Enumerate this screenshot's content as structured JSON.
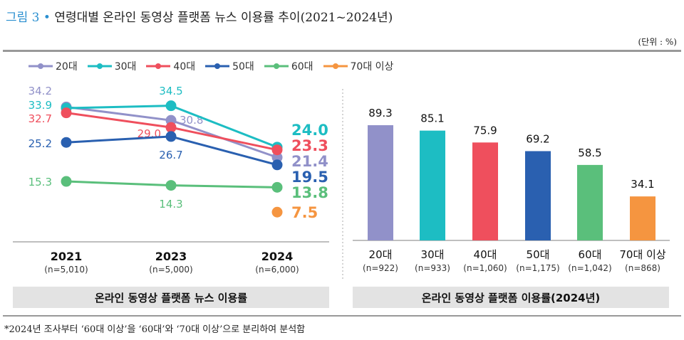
{
  "header": {
    "figure_label": "그림 3",
    "bullet": "•",
    "title": "연령대별 온라인 동영상 플랫폼 뉴스 이용률 추이(2021~2024년)",
    "unit": "(단위 : %)"
  },
  "footnote": "*2024년 조사부터 ‘60대 이상’을 ‘60대’와 ‘70대 이상’으로 분리하여 분석함",
  "chart_data": [
    {
      "type": "line",
      "caption": "온라인 동영상 플랫폼 뉴스 이용률",
      "legend_position": "top",
      "categories": [
        "2021",
        "2023",
        "2024"
      ],
      "category_samples": [
        "(n=5,010)",
        "(n=5,000)",
        "(n=6,000)"
      ],
      "series": [
        {
          "name": "20대",
          "color": "#9191c9",
          "values": [
            34.2,
            30.8,
            21.4
          ]
        },
        {
          "name": "30대",
          "color": "#1dbdc3",
          "values": [
            33.9,
            34.5,
            24.0
          ]
        },
        {
          "name": "40대",
          "color": "#ef4f5d",
          "values": [
            32.7,
            29.0,
            23.3
          ]
        },
        {
          "name": "50대",
          "color": "#2a60b0",
          "values": [
            25.2,
            26.7,
            19.5
          ]
        },
        {
          "name": "60대",
          "color": "#5abf7b",
          "values": [
            15.3,
            14.3,
            13.8
          ]
        },
        {
          "name": "70대 이상",
          "color": "#f59540",
          "values": [
            null,
            null,
            7.5
          ]
        }
      ]
    },
    {
      "type": "bar",
      "caption": "온라인 동영상 플랫폼 이용률(2024년)",
      "categories": [
        "20대",
        "30대",
        "40대",
        "50대",
        "60대",
        "70대 이상"
      ],
      "category_samples": [
        "(n=922)",
        "(n=933)",
        "(n=1,060)",
        "(n=1,175)",
        "(n=1,042)",
        "(n=868)"
      ],
      "values": [
        89.3,
        85.1,
        75.9,
        69.2,
        58.5,
        34.1
      ],
      "colors": [
        "#9191c9",
        "#1dbdc3",
        "#ef4f5d",
        "#2a60b0",
        "#5abf7b",
        "#f59540"
      ]
    }
  ]
}
